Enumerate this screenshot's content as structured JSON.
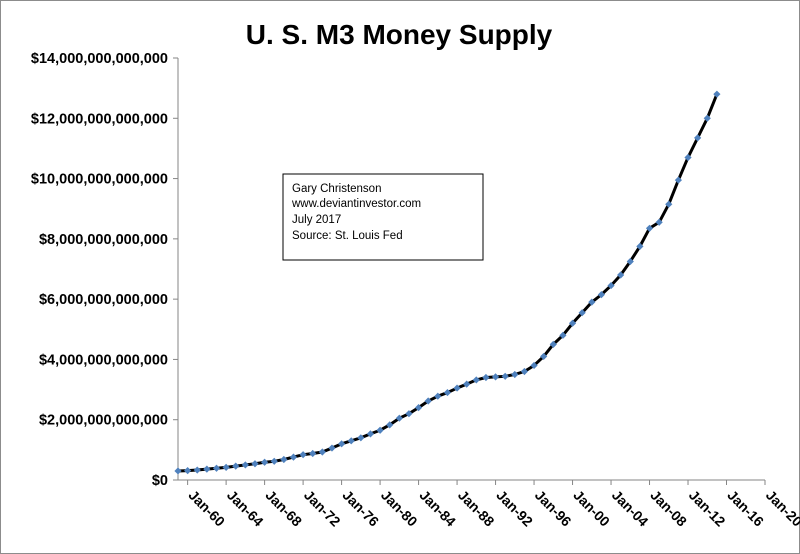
{
  "chart_data": {
    "type": "line",
    "title": "U. S. M3 Money Supply",
    "xlabel": "",
    "ylabel": "",
    "x_range": [
      "1959-01",
      "2020-01"
    ],
    "ylim": [
      0,
      14000000000000
    ],
    "y_ticks": [
      {
        "value": 0,
        "label": "$0"
      },
      {
        "value": 2000000000000,
        "label": "$2,000,000,000,000"
      },
      {
        "value": 4000000000000,
        "label": "$4,000,000,000,000"
      },
      {
        "value": 6000000000000,
        "label": "$6,000,000,000,000"
      },
      {
        "value": 8000000000000,
        "label": "$8,000,000,000,000"
      },
      {
        "value": 10000000000000,
        "label": "$10,000,000,000,000"
      },
      {
        "value": 12000000000000,
        "label": "$12,000,000,000,000"
      },
      {
        "value": 14000000000000,
        "label": "$14,000,000,000,000"
      }
    ],
    "x_ticks": [
      {
        "date": "1960-01",
        "label": "Jan-60"
      },
      {
        "date": "1964-01",
        "label": "Jan-64"
      },
      {
        "date": "1968-01",
        "label": "Jan-68"
      },
      {
        "date": "1972-01",
        "label": "Jan-72"
      },
      {
        "date": "1976-01",
        "label": "Jan-76"
      },
      {
        "date": "1980-01",
        "label": "Jan-80"
      },
      {
        "date": "1984-01",
        "label": "Jan-84"
      },
      {
        "date": "1988-01",
        "label": "Jan-88"
      },
      {
        "date": "1992-01",
        "label": "Jan-92"
      },
      {
        "date": "1996-01",
        "label": "Jan-96"
      },
      {
        "date": "2000-01",
        "label": "Jan-00"
      },
      {
        "date": "2004-01",
        "label": "Jan-04"
      },
      {
        "date": "2008-01",
        "label": "Jan-08"
      },
      {
        "date": "2012-01",
        "label": "Jan-12"
      },
      {
        "date": "2016-01",
        "label": "Jan-16"
      },
      {
        "date": "2020-01",
        "label": "Jan-20"
      }
    ],
    "grid": false,
    "legend": "none",
    "series": [
      {
        "line_color": "#000000",
        "marker_color": "#4f81bd",
        "marker": "diamond",
        "points": [
          {
            "x": "1959-01",
            "y": 300000000000
          },
          {
            "x": "1960-01",
            "y": 310000000000
          },
          {
            "x": "1961-01",
            "y": 330000000000
          },
          {
            "x": "1962-01",
            "y": 360000000000
          },
          {
            "x": "1963-01",
            "y": 390000000000
          },
          {
            "x": "1964-01",
            "y": 420000000000
          },
          {
            "x": "1965-01",
            "y": 460000000000
          },
          {
            "x": "1966-01",
            "y": 500000000000
          },
          {
            "x": "1967-01",
            "y": 540000000000
          },
          {
            "x": "1968-01",
            "y": 590000000000
          },
          {
            "x": "1969-01",
            "y": 620000000000
          },
          {
            "x": "1970-01",
            "y": 680000000000
          },
          {
            "x": "1971-01",
            "y": 760000000000
          },
          {
            "x": "1972-01",
            "y": 840000000000
          },
          {
            "x": "1973-01",
            "y": 880000000000
          },
          {
            "x": "1974-01",
            "y": 930000000000
          },
          {
            "x": "1975-01",
            "y": 1060000000000
          },
          {
            "x": "1976-01",
            "y": 1200000000000
          },
          {
            "x": "1977-01",
            "y": 1300000000000
          },
          {
            "x": "1978-01",
            "y": 1400000000000
          },
          {
            "x": "1979-01",
            "y": 1530000000000
          },
          {
            "x": "1980-01",
            "y": 1650000000000
          },
          {
            "x": "1981-01",
            "y": 1830000000000
          },
          {
            "x": "1982-01",
            "y": 2050000000000
          },
          {
            "x": "1983-01",
            "y": 2200000000000
          },
          {
            "x": "1984-01",
            "y": 2400000000000
          },
          {
            "x": "1985-01",
            "y": 2620000000000
          },
          {
            "x": "1986-01",
            "y": 2780000000000
          },
          {
            "x": "1987-01",
            "y": 2900000000000
          },
          {
            "x": "1988-01",
            "y": 3050000000000
          },
          {
            "x": "1989-01",
            "y": 3180000000000
          },
          {
            "x": "1990-01",
            "y": 3320000000000
          },
          {
            "x": "1991-01",
            "y": 3400000000000
          },
          {
            "x": "1992-01",
            "y": 3420000000000
          },
          {
            "x": "1993-01",
            "y": 3440000000000
          },
          {
            "x": "1994-01",
            "y": 3500000000000
          },
          {
            "x": "1995-01",
            "y": 3600000000000
          },
          {
            "x": "1996-01",
            "y": 3800000000000
          },
          {
            "x": "1997-01",
            "y": 4100000000000
          },
          {
            "x": "1998-01",
            "y": 4500000000000
          },
          {
            "x": "1999-01",
            "y": 4800000000000
          },
          {
            "x": "2000-01",
            "y": 5200000000000
          },
          {
            "x": "2001-01",
            "y": 5550000000000
          },
          {
            "x": "2002-01",
            "y": 5900000000000
          },
          {
            "x": "2003-01",
            "y": 6150000000000
          },
          {
            "x": "2004-01",
            "y": 6450000000000
          },
          {
            "x": "2005-01",
            "y": 6800000000000
          },
          {
            "x": "2006-01",
            "y": 7250000000000
          },
          {
            "x": "2007-01",
            "y": 7750000000000
          },
          {
            "x": "2008-01",
            "y": 8350000000000
          },
          {
            "x": "2009-01",
            "y": 8550000000000
          },
          {
            "x": "2010-01",
            "y": 9150000000000
          },
          {
            "x": "2011-01",
            "y": 9950000000000
          },
          {
            "x": "2012-01",
            "y": 10700000000000
          },
          {
            "x": "2013-01",
            "y": 11350000000000
          },
          {
            "x": "2014-01",
            "y": 12000000000000
          },
          {
            "x": "2015-01",
            "y": 12800000000000
          }
        ]
      }
    ],
    "annotations": [
      {
        "lines": [
          "Gary Christenson",
          "www.deviantinvestor.com",
          "July 2017",
          "Source:  St. Louis Fed"
        ]
      }
    ]
  }
}
